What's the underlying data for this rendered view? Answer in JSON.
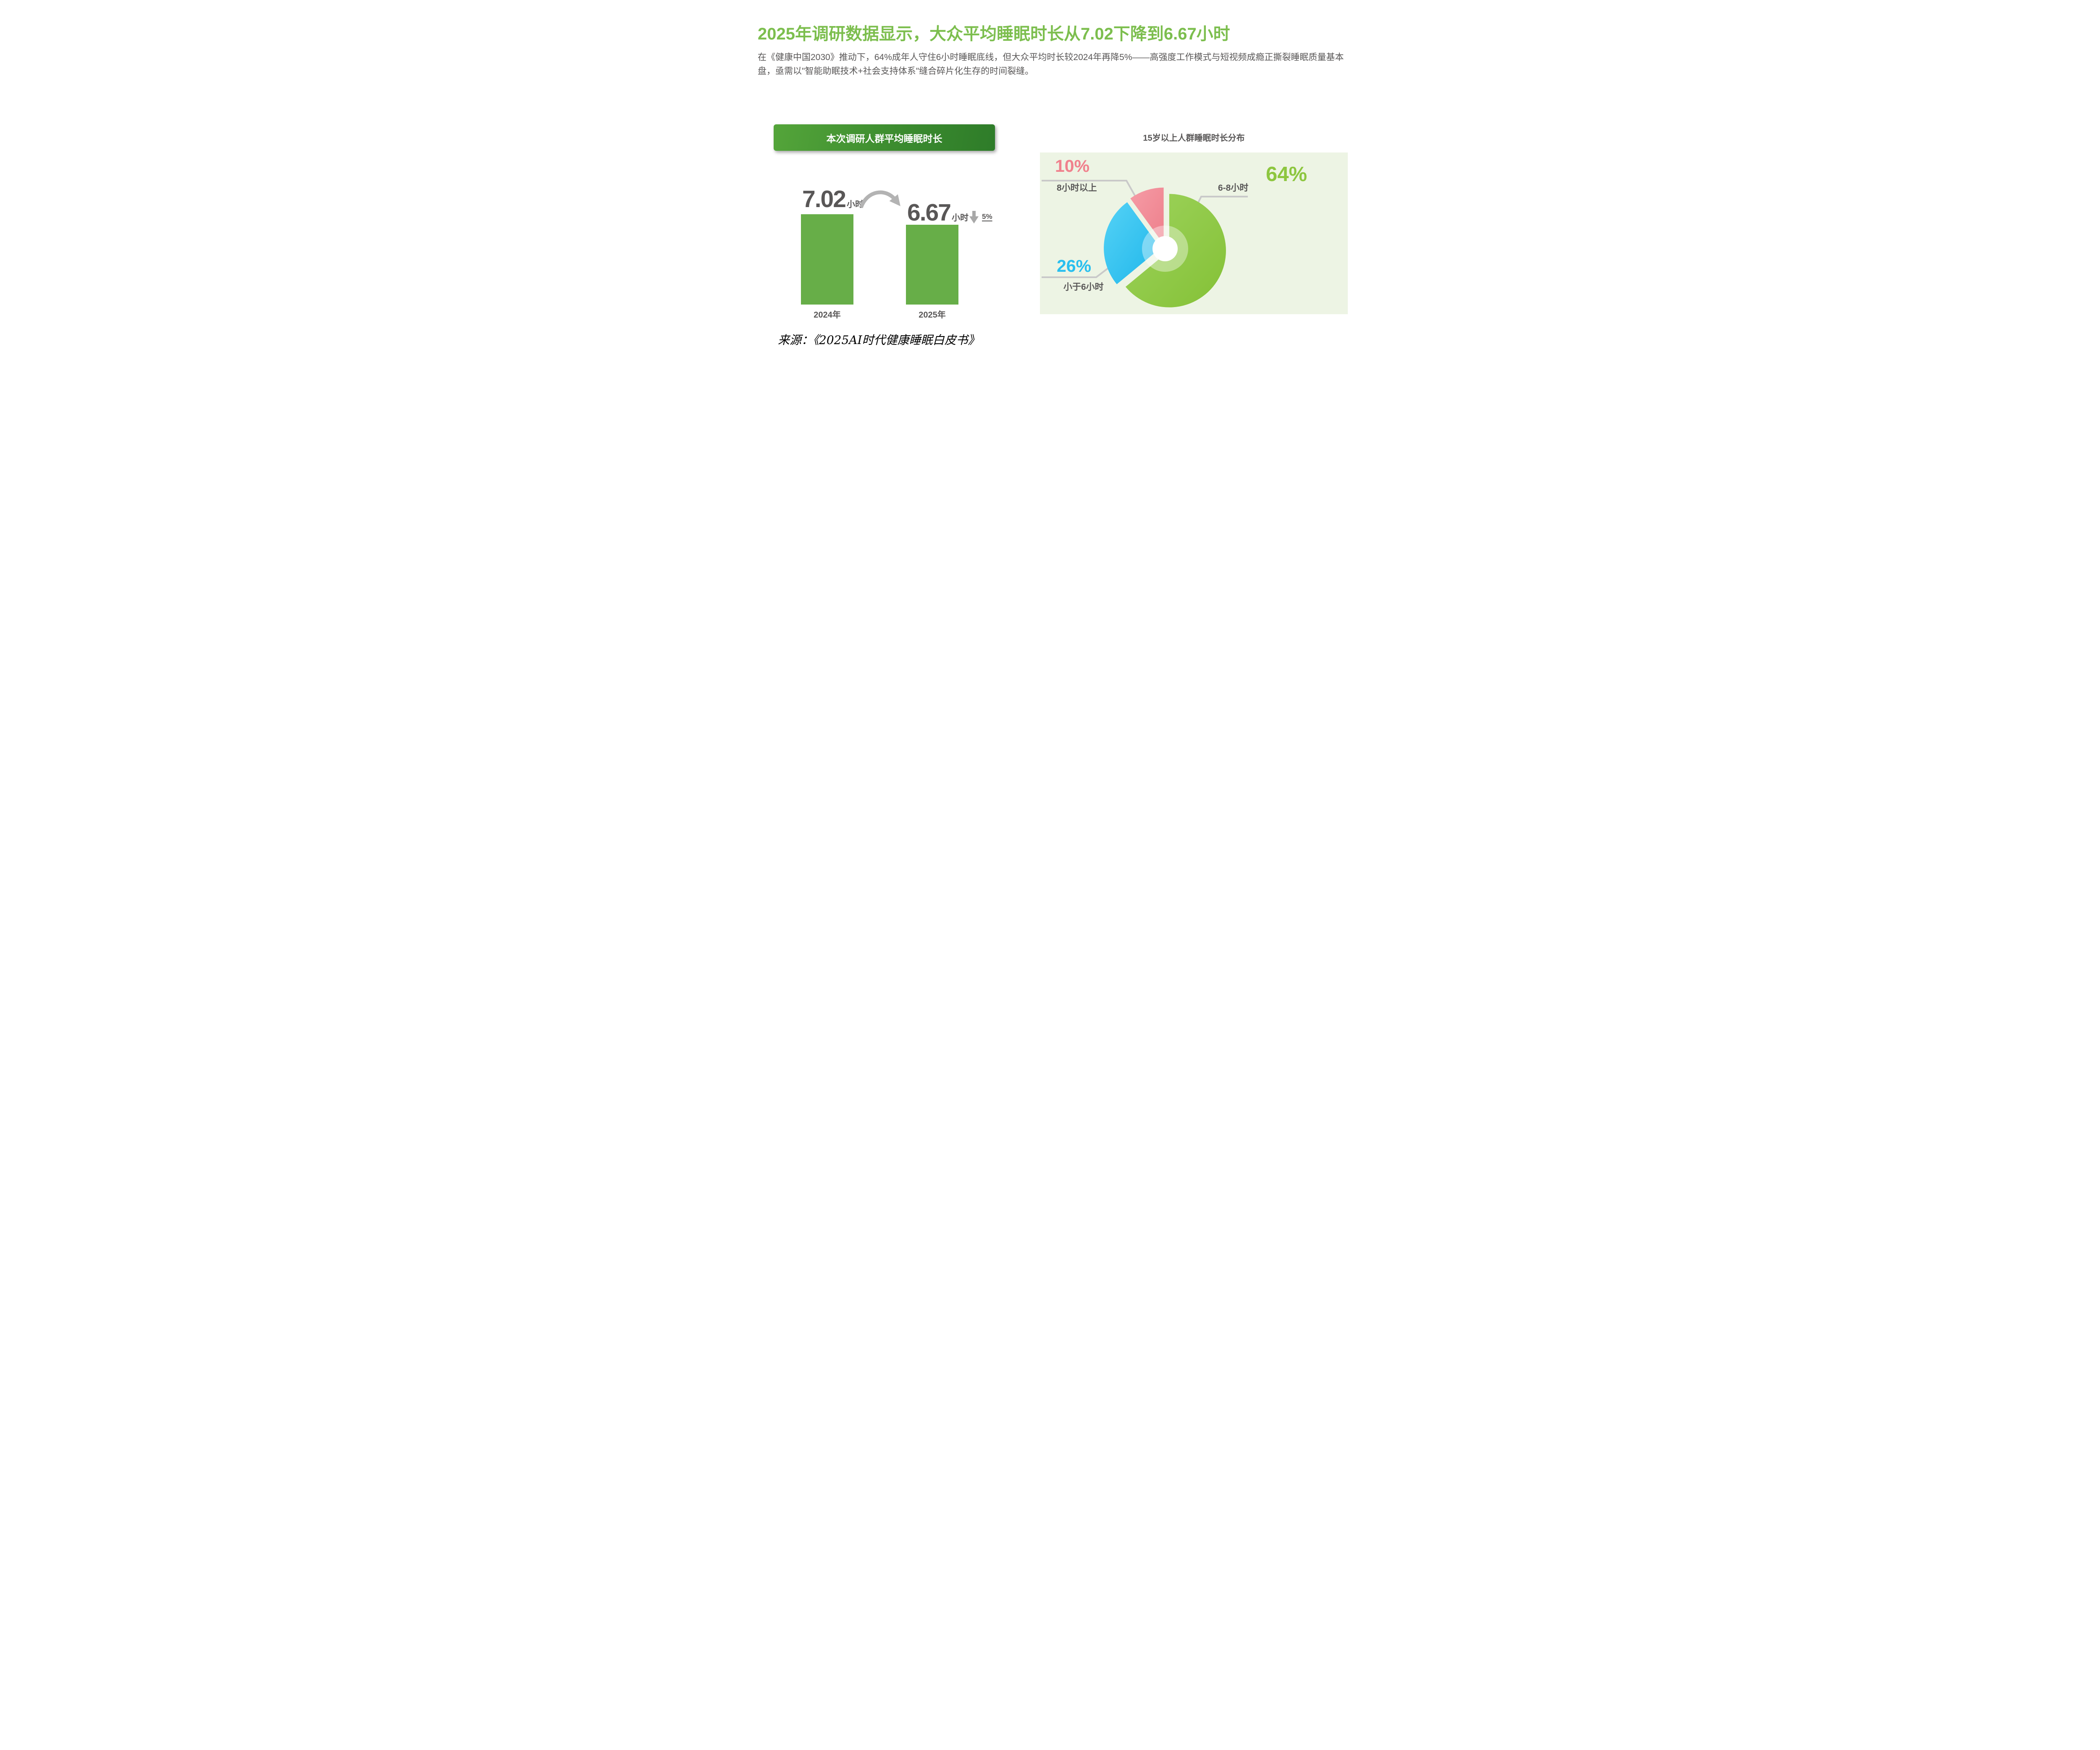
{
  "page": {
    "background": "#ffffff"
  },
  "header": {
    "title": "2025年调研数据显示，大众平均睡眠时长从7.02下降到6.67小时",
    "title_color": "#7cbe4e",
    "description": "在《健康中国2030》推动下，64%成年人守住6小时睡眠底线，但大众平均时长较2024年再降5%——高强度工作模式与短视频成瘾正撕裂睡眠质量基本盘，亟需以\"智能助眠技术+社会支持体系\"缝合碎片化生存的时间裂缝。",
    "text_color": "#595757"
  },
  "bar_chart": {
    "header_label": "本次调研人群平均睡眠时长",
    "bar_color": "#67ae48",
    "bars": [
      {
        "year": "2024年",
        "value": 7.02,
        "value_text": "7.02",
        "unit": "小时"
      },
      {
        "year": "2025年",
        "value": 6.67,
        "value_text": "6.67",
        "unit": "小时"
      }
    ],
    "drop_label": "5%"
  },
  "donut_chart": {
    "title": "15岁以上人群睡眠时长分布",
    "panel_bg": "#edf4e4",
    "leader_color": "#c9c9c9",
    "slices": [
      {
        "label": "6-8小时",
        "pct_text": "64%",
        "value": 64,
        "color": "#84c136",
        "color_light": "#9ed35d",
        "text_color": "#8dc63f"
      },
      {
        "label": "小于6小时",
        "pct_text": "26%",
        "value": 26,
        "color": "#1eb6ea",
        "color_light": "#55d2f6",
        "text_color": "#29bfef"
      },
      {
        "label": "8小时以上",
        "pct_text": "10%",
        "value": 10,
        "color": "#ee7f8b",
        "color_light": "#f59ca6",
        "text_color": "#f0818d"
      }
    ]
  },
  "source": {
    "text": "来源：《2025AI时代健康睡眠白皮书》"
  },
  "chart_data": [
    {
      "type": "bar",
      "title": "本次调研人群平均睡眠时长",
      "categories": [
        "2024年",
        "2025年"
      ],
      "values": [
        7.02,
        6.67
      ],
      "unit": "小时",
      "annotations": [
        "7.02小时",
        "6.67小时",
        "下降5%"
      ],
      "bar_color": "#67ae48",
      "grid": false,
      "legend": false
    },
    {
      "type": "pie",
      "subtype": "donut-exploded",
      "title": "15岁以上人群睡眠时长分布",
      "labels": [
        "6-8小时",
        "小于6小时",
        "8小时以上"
      ],
      "values": [
        64,
        26,
        10
      ],
      "colors": [
        "#8dc63f",
        "#29bfef",
        "#f0818d"
      ],
      "legend": false,
      "label_position": "outside-callout"
    }
  ]
}
